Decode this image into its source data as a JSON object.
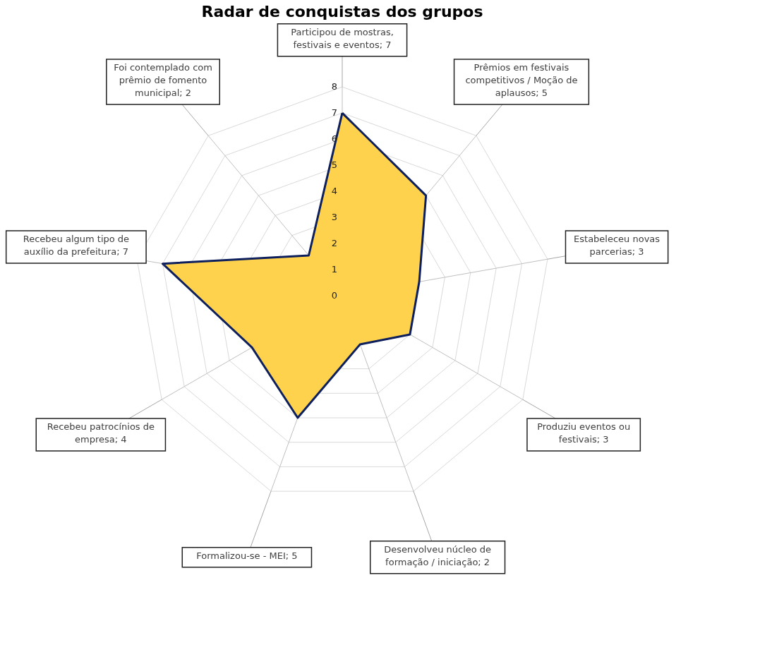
{
  "chart_data": {
    "type": "radar",
    "title": "Radar de conquistas dos grupos",
    "categories": [
      "Participou de mostras, festivais e eventos; 7",
      "Prêmios em festivais competitivos / Moção de aplausos; 5",
      "Estabeleceu novas parcerias; 3",
      "Produziu eventos ou festivais; 3",
      "Desenvolveu núcleo de formação / iniciação; 2",
      "Formalizou-se - MEI; 5",
      "Recebeu patrocínios de empresa; 4",
      "Recebeu algum tipo de auxílio da prefeitura; 7",
      "Foi contemplado com prêmio de fomento municipal; 2"
    ],
    "series": [
      {
        "color": "#ffd24d",
        "values": [
          7,
          5,
          3,
          3,
          2,
          5,
          4,
          7,
          2
        ]
      }
    ],
    "ylim": [
      0,
      8
    ],
    "yticks": [
      0,
      1,
      2,
      3,
      4,
      5,
      6,
      7,
      8
    ],
    "grid": true,
    "marker": "none"
  }
}
